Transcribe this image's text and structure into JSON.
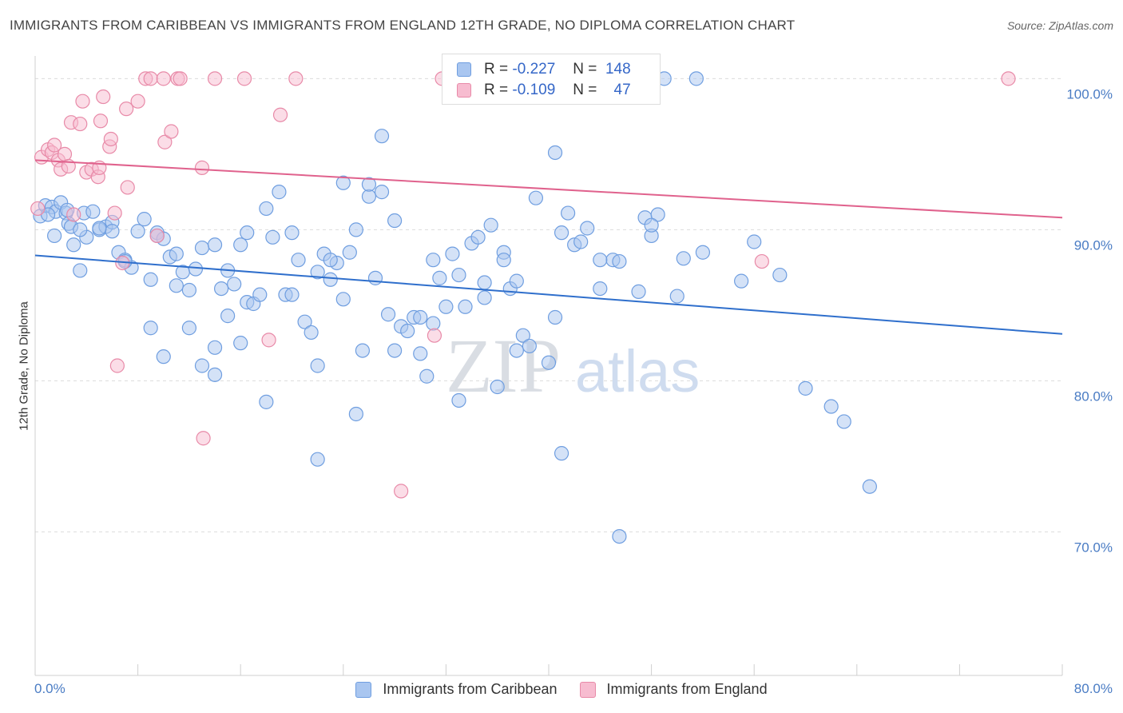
{
  "title": "IMMIGRANTS FROM CARIBBEAN VS IMMIGRANTS FROM ENGLAND 12TH GRADE, NO DIPLOMA CORRELATION CHART",
  "source": "Source: ZipAtlas.com",
  "watermark": {
    "zip": "ZIP",
    "atlas": "atlas"
  },
  "legend": {
    "r_label": "R =",
    "n_label": "N =",
    "rows": [
      {
        "r": "-0.227",
        "n": "148",
        "color": "#a9c6f0",
        "border": "#6f9ee0"
      },
      {
        "r": "-0.109",
        "n": "47",
        "color": "#f7bcd0",
        "border": "#e88aa8"
      }
    ]
  },
  "chart_data": {
    "type": "scatter",
    "title": "IMMIGRANTS FROM CARIBBEAN VS IMMIGRANTS FROM ENGLAND 12TH GRADE, NO DIPLOMA CORRELATION CHART",
    "xlabel": "",
    "ylabel": "12th Grade, No Diploma",
    "xlim": [
      0,
      80
    ],
    "ylim": [
      60.5,
      101.5
    ],
    "x_tick_labels": [
      "0.0%",
      "80.0%"
    ],
    "y_ticks": [
      {
        "value": 100,
        "label": "100.0%"
      },
      {
        "value": 90,
        "label": "90.0%"
      },
      {
        "value": 80,
        "label": "80.0%"
      },
      {
        "value": 70,
        "label": "70.0%"
      }
    ],
    "grid": true,
    "legend_position": "bottom",
    "series": [
      {
        "name": "Immigrants from Caribbean",
        "color": "#a9c6f0",
        "stroke": "#6f9ee0",
        "line_color": "#2f6fcc",
        "trend": {
          "x": [
            0,
            80
          ],
          "y": [
            88.3,
            83.1
          ]
        },
        "points": [
          [
            0.4,
            90.9
          ],
          [
            0.8,
            91.6
          ],
          [
            1.3,
            91.5
          ],
          [
            1.6,
            91.2
          ],
          [
            2.0,
            91.8
          ],
          [
            2.4,
            91.1
          ],
          [
            2.6,
            90.4
          ],
          [
            1.5,
            89.6
          ],
          [
            3.0,
            89.0
          ],
          [
            2.8,
            90.2
          ],
          [
            3.5,
            87.3
          ],
          [
            3.8,
            91.1
          ],
          [
            4.0,
            89.5
          ],
          [
            5.0,
            90.0
          ],
          [
            5.5,
            90.2
          ],
          [
            6.0,
            90.5
          ],
          [
            6.5,
            88.5
          ],
          [
            7.0,
            88.0
          ],
          [
            7.5,
            87.5
          ],
          [
            8.5,
            90.7
          ],
          [
            9.0,
            86.7
          ],
          [
            9.5,
            89.8
          ],
          [
            10.0,
            89.4
          ],
          [
            10.5,
            88.2
          ],
          [
            11.0,
            86.3
          ],
          [
            11.5,
            87.2
          ],
          [
            12.0,
            86.0
          ],
          [
            12.5,
            87.4
          ],
          [
            13.0,
            88.8
          ],
          [
            14.0,
            89.0
          ],
          [
            14.5,
            86.1
          ],
          [
            15.0,
            87.3
          ],
          [
            15.5,
            86.4
          ],
          [
            16.0,
            89.0
          ],
          [
            16.5,
            85.2
          ],
          [
            17.0,
            85.1
          ],
          [
            17.5,
            85.7
          ],
          [
            18.0,
            91.4
          ],
          [
            18.5,
            89.5
          ],
          [
            19.5,
            85.7
          ],
          [
            20.0,
            89.8
          ],
          [
            20.5,
            88.0
          ],
          [
            21.0,
            83.9
          ],
          [
            21.5,
            83.2
          ],
          [
            22.0,
            87.2
          ],
          [
            22.5,
            88.4
          ],
          [
            23.0,
            86.7
          ],
          [
            23.5,
            87.8
          ],
          [
            24.0,
            93.1
          ],
          [
            24.5,
            88.5
          ],
          [
            25.0,
            90.0
          ],
          [
            25.5,
            82.0
          ],
          [
            26.0,
            92.2
          ],
          [
            26.5,
            86.8
          ],
          [
            27.0,
            92.5
          ],
          [
            27.5,
            84.4
          ],
          [
            28.0,
            90.6
          ],
          [
            28.5,
            83.6
          ],
          [
            29.0,
            83.3
          ],
          [
            29.5,
            84.2
          ],
          [
            30.0,
            81.8
          ],
          [
            30.5,
            80.3
          ],
          [
            31.0,
            83.8
          ],
          [
            31.5,
            86.8
          ],
          [
            32.0,
            84.9
          ],
          [
            32.5,
            88.4
          ],
          [
            33.0,
            87.0
          ],
          [
            33.5,
            84.9
          ],
          [
            34.0,
            89.1
          ],
          [
            34.5,
            89.5
          ],
          [
            35.0,
            85.5
          ],
          [
            35.5,
            90.3
          ],
          [
            36.0,
            79.6
          ],
          [
            36.5,
            88.5
          ],
          [
            37.0,
            86.1
          ],
          [
            37.5,
            86.6
          ],
          [
            38.0,
            83.0
          ],
          [
            38.5,
            82.3
          ],
          [
            39.0,
            92.1
          ],
          [
            40.0,
            81.2
          ],
          [
            40.5,
            84.2
          ],
          [
            41.0,
            89.8
          ],
          [
            41.5,
            91.1
          ],
          [
            42.0,
            89.0
          ],
          [
            42.5,
            89.2
          ],
          [
            43.0,
            90.1
          ],
          [
            44.0,
            86.1
          ],
          [
            45.0,
            88.0
          ],
          [
            45.5,
            87.9
          ],
          [
            47.0,
            85.9
          ],
          [
            47.5,
            90.8
          ],
          [
            48.0,
            89.6
          ],
          [
            48.5,
            91.0
          ],
          [
            50.0,
            85.6
          ],
          [
            50.5,
            88.1
          ],
          [
            52.0,
            88.5
          ],
          [
            55.0,
            86.6
          ],
          [
            56.0,
            89.2
          ],
          [
            58.0,
            87.0
          ],
          [
            60.0,
            79.5
          ],
          [
            62.0,
            78.3
          ],
          [
            63.0,
            77.3
          ],
          [
            65.0,
            73.0
          ],
          [
            45.5,
            69.7
          ],
          [
            41.0,
            75.2
          ],
          [
            40.5,
            95.1
          ],
          [
            34.5,
            100.0
          ],
          [
            37.0,
            100.0
          ],
          [
            49.0,
            100.0
          ],
          [
            27.0,
            96.2
          ],
          [
            51.5,
            100.0
          ],
          [
            36.5,
            88.0
          ],
          [
            19.0,
            92.5
          ],
          [
            33.0,
            78.7
          ],
          [
            25.0,
            77.8
          ],
          [
            22.0,
            81.0
          ],
          [
            18.0,
            78.6
          ],
          [
            22.0,
            74.8
          ],
          [
            10.0,
            81.6
          ],
          [
            13.0,
            81.0
          ],
          [
            14.0,
            80.4
          ],
          [
            16.0,
            82.5
          ],
          [
            15.0,
            84.3
          ],
          [
            12.0,
            83.5
          ],
          [
            9.0,
            83.5
          ],
          [
            6.0,
            89.9
          ],
          [
            5.0,
            90.1
          ],
          [
            7.0,
            87.9
          ],
          [
            8.0,
            89.9
          ],
          [
            14.0,
            82.2
          ],
          [
            24.0,
            85.4
          ],
          [
            30.0,
            84.2
          ],
          [
            28.0,
            82.0
          ],
          [
            31.0,
            88.0
          ],
          [
            35.0,
            86.5
          ],
          [
            37.5,
            82.0
          ],
          [
            44.0,
            88.0
          ],
          [
            26.0,
            93.0
          ],
          [
            23.0,
            88.0
          ],
          [
            20.0,
            85.7
          ],
          [
            48.0,
            90.3
          ],
          [
            11.0,
            88.4
          ],
          [
            3.5,
            90.0
          ],
          [
            2.5,
            91.3
          ],
          [
            1.0,
            91.0
          ],
          [
            4.5,
            91.2
          ],
          [
            9.5,
            89.6
          ],
          [
            16.5,
            89.8
          ]
        ]
      },
      {
        "name": "Immigrants from England",
        "color": "#f7bcd0",
        "stroke": "#e88aa8",
        "line_color": "#e0628d",
        "trend": {
          "x": [
            0,
            80
          ],
          "y": [
            94.6,
            90.8
          ]
        },
        "points": [
          [
            0.5,
            94.8
          ],
          [
            1.0,
            95.3
          ],
          [
            1.3,
            95.1
          ],
          [
            1.5,
            95.6
          ],
          [
            1.8,
            94.6
          ],
          [
            2.0,
            94.0
          ],
          [
            2.3,
            95.0
          ],
          [
            2.6,
            94.2
          ],
          [
            2.8,
            97.1
          ],
          [
            3.5,
            97.0
          ],
          [
            3.7,
            98.5
          ],
          [
            4.0,
            93.8
          ],
          [
            4.4,
            94.0
          ],
          [
            4.9,
            93.5
          ],
          [
            5.1,
            97.2
          ],
          [
            5.3,
            98.8
          ],
          [
            5.8,
            95.5
          ],
          [
            5.9,
            96.0
          ],
          [
            6.2,
            91.1
          ],
          [
            7.1,
            98.0
          ],
          [
            7.2,
            92.8
          ],
          [
            8.0,
            98.5
          ],
          [
            8.6,
            100.0
          ],
          [
            9.0,
            100.0
          ],
          [
            10.0,
            100.0
          ],
          [
            10.1,
            95.8
          ],
          [
            10.6,
            96.5
          ],
          [
            11.1,
            100.0
          ],
          [
            11.3,
            100.0
          ],
          [
            13.0,
            94.1
          ],
          [
            14.0,
            100.0
          ],
          [
            16.3,
            100.0
          ],
          [
            19.1,
            97.6
          ],
          [
            20.3,
            100.0
          ],
          [
            9.5,
            89.6
          ],
          [
            6.8,
            87.8
          ],
          [
            18.2,
            82.7
          ],
          [
            6.4,
            81.0
          ],
          [
            13.1,
            76.2
          ],
          [
            28.5,
            72.7
          ],
          [
            31.1,
            83.0
          ],
          [
            31.7,
            100.0
          ],
          [
            56.6,
            87.9
          ],
          [
            75.8,
            100.0
          ],
          [
            0.2,
            91.4
          ],
          [
            3.0,
            91.0
          ],
          [
            5.0,
            94.1
          ]
        ]
      }
    ]
  }
}
